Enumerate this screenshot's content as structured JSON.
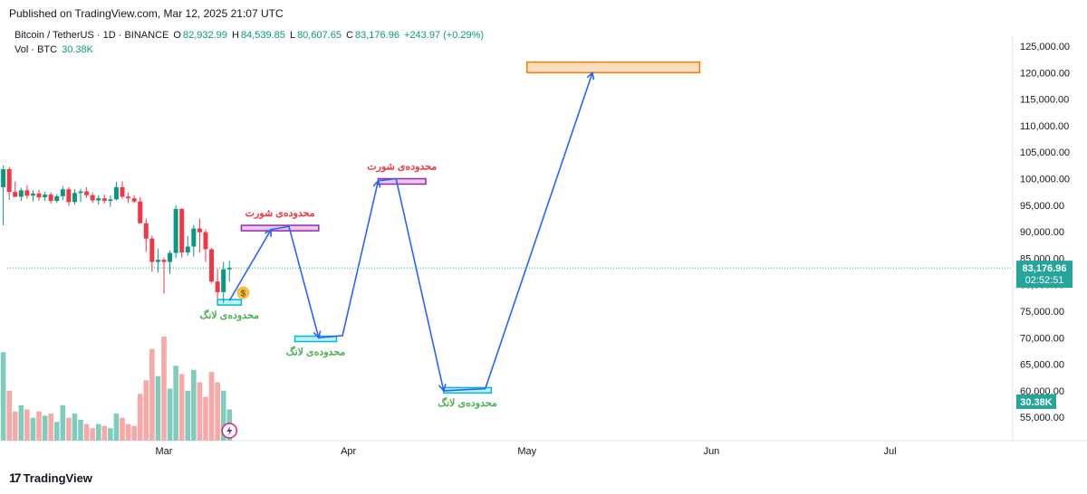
{
  "published": "Published on TradingView.com, Mar 12, 2025 21:07 UTC",
  "header": {
    "symbol": "Bitcoin / TetherUS · 1D · BINANCE",
    "o_label": "O",
    "o_value": "82,932.99",
    "h_label": "H",
    "h_value": "84,539.85",
    "l_label": "L",
    "l_value": "80,607.65",
    "c_label": "C",
    "c_value": "83,176.96",
    "change": "+243.97 (+0.29%)",
    "vol_label": "Vol · BTC",
    "vol_value": "30.38K"
  },
  "footer": {
    "brand": "TradingView"
  },
  "colors": {
    "up": "#089981",
    "down": "#f23645",
    "vol_up": "#7fccbd",
    "vol_down": "#f7a9a7",
    "path": "#2962ff",
    "short_zone": "#9c27b0",
    "long_zone": "#00bcd4",
    "target_zone": "#f57c00",
    "price_line": "#26a69a"
  },
  "chart_data": {
    "type": "candlestick",
    "symbol": "BTCUSDT",
    "interval": "1D",
    "y_axis": {
      "ticks": [
        "125,000.00",
        "120,000.00",
        "115,000.00",
        "110,000.00",
        "105,000.00",
        "100,000.00",
        "95,000.00",
        "90,000.00",
        "85,000.00",
        "80,000.00",
        "75,000.00",
        "70,000.00",
        "65,000.00",
        "60,000.00",
        "55,000.00"
      ],
      "range": [
        53500,
        125500
      ]
    },
    "x_axis": {
      "ticks": [
        "Mar",
        "Apr",
        "May",
        "Jun",
        "Jul"
      ]
    },
    "last_price": {
      "value": "83,176.96",
      "countdown": "02:52:51"
    },
    "volume_last": "30.38K",
    "candles": [
      {
        "o": 98400,
        "h": 102500,
        "l": 91200,
        "c": 101800
      },
      {
        "o": 101800,
        "h": 102200,
        "l": 96000,
        "c": 97500
      },
      {
        "o": 97500,
        "h": 99500,
        "l": 96500,
        "c": 96600
      },
      {
        "o": 96600,
        "h": 98300,
        "l": 95800,
        "c": 97800
      },
      {
        "o": 97800,
        "h": 98800,
        "l": 96200,
        "c": 96800
      },
      {
        "o": 96800,
        "h": 97800,
        "l": 95700,
        "c": 97200
      },
      {
        "o": 97200,
        "h": 97900,
        "l": 95900,
        "c": 96500
      },
      {
        "o": 96500,
        "h": 97600,
        "l": 95800,
        "c": 97000
      },
      {
        "o": 97000,
        "h": 97400,
        "l": 95300,
        "c": 95800
      },
      {
        "o": 95800,
        "h": 97100,
        "l": 95400,
        "c": 96700
      },
      {
        "o": 96700,
        "h": 98600,
        "l": 96000,
        "c": 98000
      },
      {
        "o": 98000,
        "h": 98400,
        "l": 94900,
        "c": 95600
      },
      {
        "o": 95600,
        "h": 98000,
        "l": 95100,
        "c": 97300
      },
      {
        "o": 97300,
        "h": 98100,
        "l": 95600,
        "c": 97600
      },
      {
        "o": 97600,
        "h": 98400,
        "l": 96400,
        "c": 96900
      },
      {
        "o": 96900,
        "h": 97400,
        "l": 95400,
        "c": 95900
      },
      {
        "o": 95900,
        "h": 96900,
        "l": 95100,
        "c": 96300
      },
      {
        "o": 96300,
        "h": 97000,
        "l": 95300,
        "c": 95800
      },
      {
        "o": 95800,
        "h": 96800,
        "l": 94700,
        "c": 96100
      },
      {
        "o": 96100,
        "h": 99400,
        "l": 95900,
        "c": 98400
      },
      {
        "o": 98400,
        "h": 99500,
        "l": 96200,
        "c": 96600
      },
      {
        "o": 96600,
        "h": 97400,
        "l": 95400,
        "c": 96300
      },
      {
        "o": 96300,
        "h": 96900,
        "l": 95400,
        "c": 95700
      },
      {
        "o": 95700,
        "h": 96500,
        "l": 91500,
        "c": 91600
      },
      {
        "o": 91600,
        "h": 92500,
        "l": 86200,
        "c": 88700
      },
      {
        "o": 88700,
        "h": 89300,
        "l": 82400,
        "c": 84300
      },
      {
        "o": 84300,
        "h": 86800,
        "l": 82300,
        "c": 84700
      },
      {
        "o": 84700,
        "h": 85100,
        "l": 78300,
        "c": 84300
      },
      {
        "o": 84300,
        "h": 86500,
        "l": 82000,
        "c": 86000
      },
      {
        "o": 86000,
        "h": 95000,
        "l": 85100,
        "c": 94300
      },
      {
        "o": 94300,
        "h": 94400,
        "l": 85100,
        "c": 86100
      },
      {
        "o": 86100,
        "h": 89200,
        "l": 85500,
        "c": 87200
      },
      {
        "o": 87200,
        "h": 91300,
        "l": 85300,
        "c": 90600
      },
      {
        "o": 90600,
        "h": 92500,
        "l": 86100,
        "c": 89900
      },
      {
        "o": 89900,
        "h": 90400,
        "l": 84300,
        "c": 86700
      },
      {
        "o": 86700,
        "h": 86900,
        "l": 80300,
        "c": 80600
      },
      {
        "o": 80600,
        "h": 83000,
        "l": 77200,
        "c": 78600
      },
      {
        "o": 78600,
        "h": 84300,
        "l": 76600,
        "c": 82900
      },
      {
        "o": 82900,
        "h": 84540,
        "l": 80600,
        "c": 83177
      }
    ],
    "volume": [
      0.85,
      0.48,
      0.28,
      0.34,
      0.3,
      0.22,
      0.28,
      0.24,
      0.26,
      0.18,
      0.34,
      0.22,
      0.26,
      0.2,
      0.16,
      0.12,
      0.16,
      0.14,
      0.12,
      0.26,
      0.22,
      0.16,
      0.14,
      0.45,
      0.58,
      0.88,
      0.62,
      1.0,
      0.5,
      0.72,
      0.64,
      0.48,
      0.68,
      0.56,
      0.42,
      0.66,
      0.56,
      0.48,
      0.3
    ],
    "annotations": [
      {
        "label": "محدوده‌ی لانگ",
        "kind": "long_zone",
        "price": [
          76200,
          77200
        ],
        "date": "~Mar 10–Mar 14"
      },
      {
        "label": "محدوده‌ی شورت",
        "kind": "short_zone",
        "price": [
          90200,
          91200
        ],
        "date": "~Mar 14–Mar 27"
      },
      {
        "label": "محدوده‌ی لانگ",
        "kind": "long_zone",
        "price": [
          69300,
          70300
        ],
        "date": "~Mar 23–Mar 30"
      },
      {
        "label": "محدوده‌ی شورت",
        "kind": "short_zone",
        "price": [
          99000,
          100000
        ],
        "date": "~Apr 6–Apr 14"
      },
      {
        "label": "محدوده‌ی لانگ",
        "kind": "long_zone",
        "price": [
          59600,
          60600
        ],
        "date": "~Apr 17–Apr 25"
      },
      {
        "label": "",
        "kind": "target_zone",
        "price": [
          120000,
          122000
        ],
        "date": "~May 1–May 30"
      }
    ],
    "projected_path": [
      {
        "date": "~Mar 12",
        "price": 77000
      },
      {
        "date": "~Mar 19",
        "price": 90400
      },
      {
        "date": "~Mar 22",
        "price": 91000
      },
      {
        "date": "~Mar 27",
        "price": 70000
      },
      {
        "date": "~Mar 31",
        "price": 70400
      },
      {
        "date": "~Apr 6",
        "price": 99600
      },
      {
        "date": "~Apr 9",
        "price": 100000
      },
      {
        "date": "~Apr 17",
        "price": 60000
      },
      {
        "date": "~Apr 24",
        "price": 60400
      },
      {
        "date": "~May 12",
        "price": 120000
      }
    ]
  }
}
